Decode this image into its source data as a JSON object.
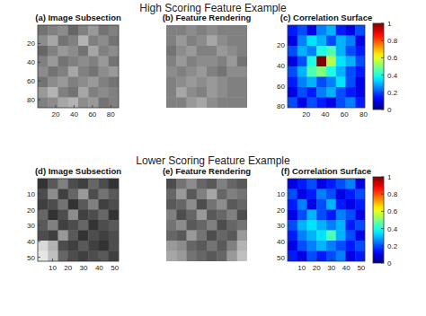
{
  "headings": [
    "High Scoring Feature Example",
    "Lower Scoring Feature Example"
  ],
  "chart_data": [
    {
      "type": "heatmap",
      "title": "(a) Image Subsection",
      "xlim": [
        0.5,
        88.5
      ],
      "ylim": [
        88.5,
        0.5
      ],
      "xticks": [
        20,
        40,
        60,
        80
      ],
      "yticks": [
        20,
        40,
        60,
        80
      ],
      "cells": [
        [
          0.45,
          0.5,
          0.55,
          0.4,
          0.5,
          0.6,
          0.45,
          0.5
        ],
        [
          0.55,
          0.65,
          0.45,
          0.5,
          0.7,
          0.5,
          0.55,
          0.45
        ],
        [
          0.4,
          0.5,
          0.6,
          0.55,
          0.45,
          0.65,
          0.5,
          0.55
        ],
        [
          0.5,
          0.6,
          0.45,
          0.5,
          0.55,
          0.5,
          0.6,
          0.45
        ],
        [
          0.55,
          0.45,
          0.5,
          0.65,
          0.5,
          0.45,
          0.55,
          0.6
        ],
        [
          0.45,
          0.55,
          0.6,
          0.5,
          0.55,
          0.6,
          0.5,
          0.45
        ],
        [
          0.6,
          0.7,
          0.5,
          0.45,
          0.65,
          0.5,
          0.55,
          0.5
        ],
        [
          0.5,
          0.55,
          0.65,
          0.7,
          0.55,
          0.6,
          0.45,
          0.5
        ]
      ]
    },
    {
      "type": "heatmap",
      "title": "(b) Feature Rendering",
      "xlim": [
        0.5,
        88.5
      ],
      "ylim": [
        88.5,
        0.5
      ],
      "tick_labels": false,
      "cells": [
        [
          0.5,
          0.5,
          0.55,
          0.5,
          0.55,
          0.5,
          0.5,
          0.5
        ],
        [
          0.5,
          0.6,
          0.5,
          0.55,
          0.65,
          0.55,
          0.5,
          0.5
        ],
        [
          0.45,
          0.55,
          0.6,
          0.5,
          0.5,
          0.6,
          0.55,
          0.5
        ],
        [
          0.5,
          0.6,
          0.5,
          0.55,
          0.55,
          0.5,
          0.6,
          0.45
        ],
        [
          0.55,
          0.5,
          0.55,
          0.6,
          0.5,
          0.45,
          0.55,
          0.55
        ],
        [
          0.5,
          0.55,
          0.6,
          0.55,
          0.6,
          0.55,
          0.5,
          0.5
        ],
        [
          0.5,
          0.65,
          0.55,
          0.5,
          0.6,
          0.55,
          0.5,
          0.5
        ],
        [
          0.5,
          0.5,
          0.6,
          0.65,
          0.55,
          0.5,
          0.5,
          0.5
        ]
      ]
    },
    {
      "type": "heatmap",
      "title": "(c) Correlation Surface",
      "xlim": [
        0.5,
        81.5
      ],
      "ylim": [
        81.5,
        0.5
      ],
      "xticks": [
        20,
        40,
        60,
        80
      ],
      "yticks": [
        20,
        40,
        60,
        80
      ],
      "cells": [
        [
          0.15,
          0.2,
          0.1,
          0.25,
          0.3,
          0.15,
          0.1,
          0.2
        ],
        [
          0.1,
          0.25,
          0.35,
          0.3,
          0.2,
          0.3,
          0.25,
          0.1
        ],
        [
          0.2,
          0.3,
          0.25,
          0.4,
          0.45,
          0.3,
          0.2,
          0.15
        ],
        [
          0.1,
          0.2,
          0.4,
          1.0,
          0.55,
          0.35,
          0.3,
          0.2
        ],
        [
          0.2,
          0.3,
          0.45,
          0.5,
          0.4,
          0.3,
          0.2,
          0.15
        ],
        [
          0.15,
          0.25,
          0.3,
          0.2,
          0.25,
          0.35,
          0.2,
          0.1
        ],
        [
          0.1,
          0.2,
          0.15,
          0.25,
          0.3,
          0.2,
          0.15,
          0.1
        ],
        [
          0.2,
          0.1,
          0.2,
          0.15,
          0.1,
          0.2,
          0.25,
          0.15
        ]
      ],
      "colorbar": {
        "range": [
          0,
          1
        ],
        "ticks": [
          0,
          0.2,
          0.4,
          0.6,
          0.8,
          1
        ]
      }
    },
    {
      "type": "heatmap",
      "title": "(d) Image Subsection",
      "xlim": [
        0.5,
        52.5
      ],
      "ylim": [
        52.5,
        0.5
      ],
      "xticks": [
        10,
        20,
        30,
        40,
        50
      ],
      "yticks": [
        10,
        20,
        30,
        40,
        50
      ],
      "cells": [
        [
          0.2,
          0.35,
          0.5,
          0.3,
          0.25,
          0.4,
          0.3,
          0.2
        ],
        [
          0.3,
          0.55,
          0.25,
          0.4,
          0.6,
          0.3,
          0.45,
          0.35
        ],
        [
          0.25,
          0.3,
          0.45,
          0.2,
          0.35,
          0.5,
          0.25,
          0.3
        ],
        [
          0.4,
          0.2,
          0.3,
          0.55,
          0.25,
          0.3,
          0.4,
          0.2
        ],
        [
          0.35,
          0.5,
          0.25,
          0.3,
          0.4,
          0.2,
          0.3,
          0.35
        ],
        [
          0.3,
          0.25,
          0.6,
          0.35,
          0.2,
          0.3,
          0.25,
          0.3
        ],
        [
          0.85,
          0.7,
          0.3,
          0.25,
          0.35,
          0.25,
          0.2,
          0.3
        ],
        [
          0.9,
          0.75,
          0.4,
          0.3,
          0.25,
          0.3,
          0.35,
          0.25
        ]
      ]
    },
    {
      "type": "heatmap",
      "title": "(e) Feature Rendering",
      "xlim": [
        0.5,
        52.5
      ],
      "ylim": [
        52.5,
        0.5
      ],
      "tick_labels": false,
      "cells": [
        [
          0.3,
          0.45,
          0.55,
          0.4,
          0.35,
          0.5,
          0.4,
          0.35
        ],
        [
          0.4,
          0.6,
          0.35,
          0.5,
          0.65,
          0.4,
          0.5,
          0.45
        ],
        [
          0.35,
          0.4,
          0.55,
          0.3,
          0.45,
          0.55,
          0.35,
          0.4
        ],
        [
          0.5,
          0.3,
          0.4,
          0.6,
          0.35,
          0.4,
          0.5,
          0.3
        ],
        [
          0.45,
          0.55,
          0.35,
          0.4,
          0.5,
          0.3,
          0.4,
          0.45
        ],
        [
          0.4,
          0.35,
          0.6,
          0.45,
          0.3,
          0.4,
          0.35,
          0.6
        ],
        [
          0.6,
          0.55,
          0.4,
          0.35,
          0.45,
          0.35,
          0.5,
          0.7
        ],
        [
          0.65,
          0.6,
          0.45,
          0.4,
          0.35,
          0.4,
          0.6,
          0.75
        ]
      ]
    },
    {
      "type": "heatmap",
      "title": "(f) Correlation Surface",
      "xlim": [
        0.5,
        52.5
      ],
      "ylim": [
        52.5,
        0.5
      ],
      "xticks": [
        10,
        20,
        30,
        40,
        50
      ],
      "yticks": [
        10,
        20,
        30,
        40,
        50
      ],
      "cells": [
        [
          0.1,
          0.15,
          0.2,
          0.1,
          0.15,
          0.2,
          0.25,
          0.1
        ],
        [
          0.2,
          0.1,
          0.15,
          0.25,
          0.2,
          0.1,
          0.15,
          0.2
        ],
        [
          0.15,
          0.25,
          0.1,
          0.2,
          0.3,
          0.15,
          0.1,
          0.15
        ],
        [
          0.1,
          0.2,
          0.3,
          0.2,
          0.15,
          0.25,
          0.2,
          0.1
        ],
        [
          0.2,
          0.3,
          0.35,
          0.3,
          0.25,
          0.3,
          0.15,
          0.2
        ],
        [
          0.15,
          0.25,
          0.3,
          0.35,
          0.45,
          0.3,
          0.2,
          0.1
        ],
        [
          0.1,
          0.2,
          0.25,
          0.3,
          0.25,
          0.2,
          0.15,
          0.2
        ],
        [
          0.15,
          0.1,
          0.2,
          0.15,
          0.2,
          0.25,
          0.1,
          0.15
        ]
      ],
      "colorbar": {
        "range": [
          0,
          1
        ],
        "ticks": [
          0,
          0.2,
          0.4,
          0.6,
          0.8,
          1
        ]
      }
    }
  ]
}
